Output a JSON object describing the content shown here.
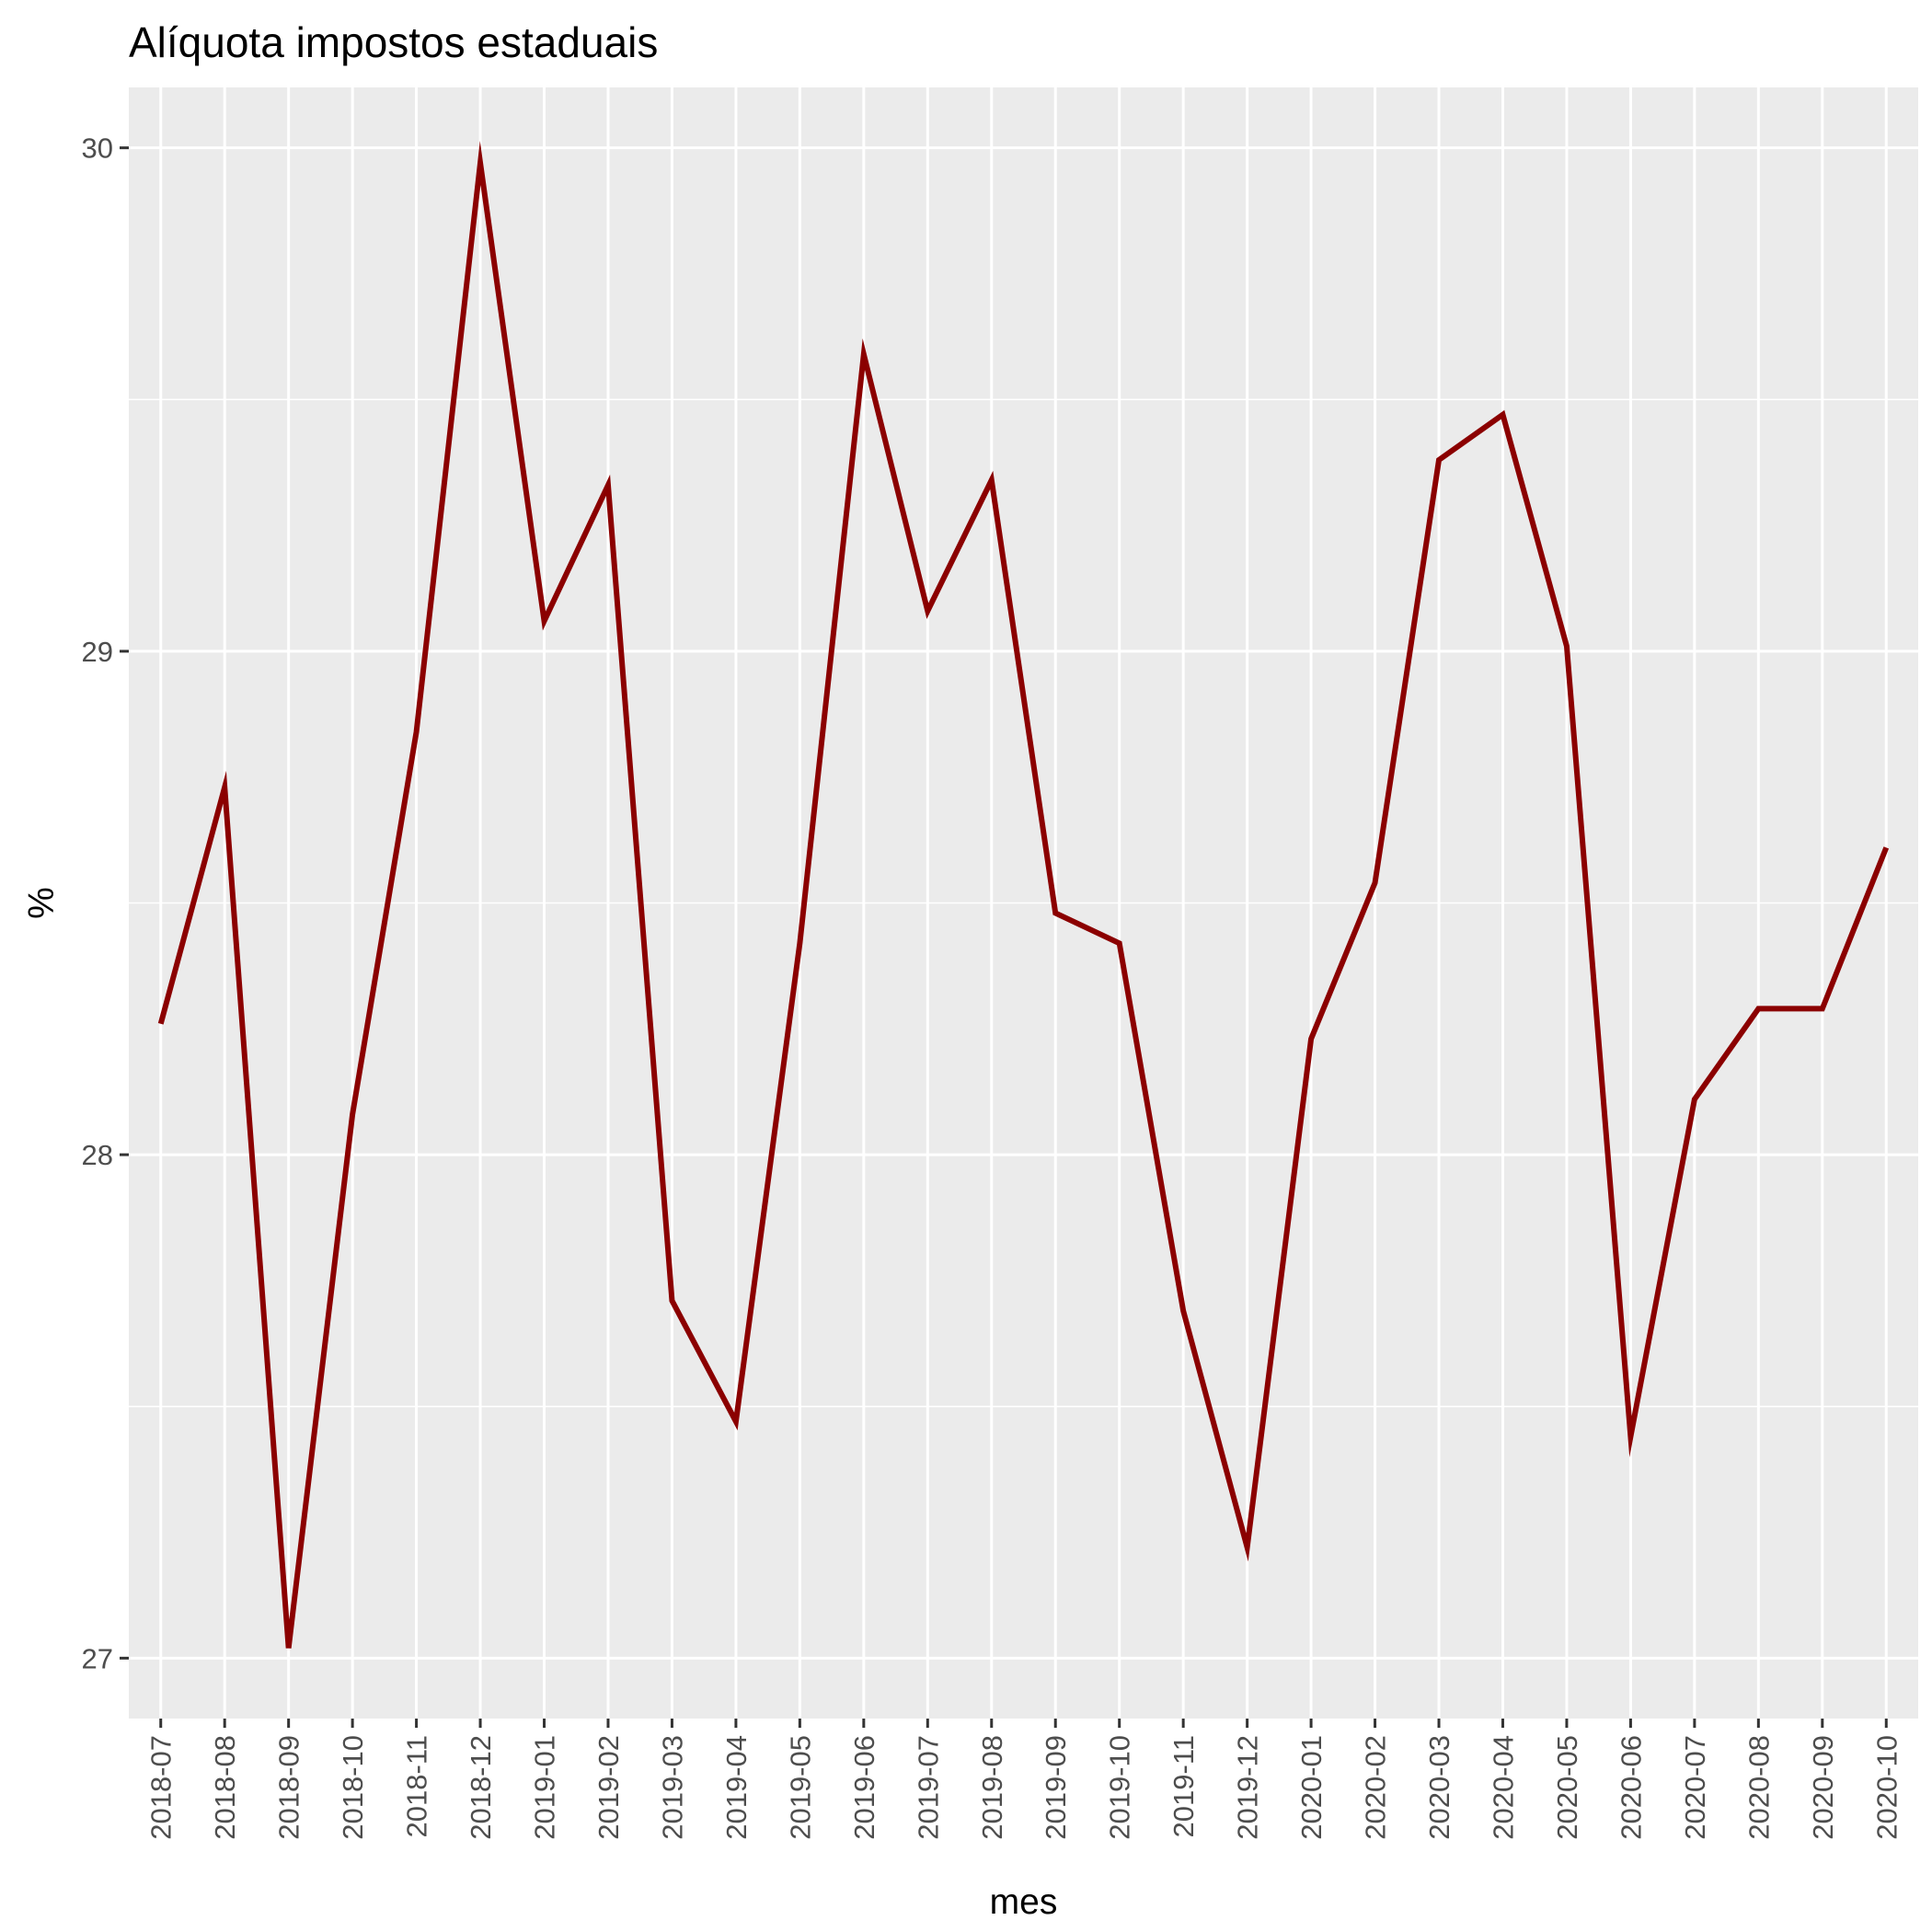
{
  "chart_data": {
    "type": "line",
    "title": "Alíquota impostos estaduais",
    "xlabel": "mes",
    "ylabel": "%",
    "categories": [
      "2018-07",
      "2018-08",
      "2018-09",
      "2018-10",
      "2018-11",
      "2018-12",
      "2019-01",
      "2019-02",
      "2019-03",
      "2019-04",
      "2019-05",
      "2019-06",
      "2019-07",
      "2019-08",
      "2019-09",
      "2019-10",
      "2019-11",
      "2019-12",
      "2020-01",
      "2020-02",
      "2020-03",
      "2020-04",
      "2020-05",
      "2020-06",
      "2020-07",
      "2020-08",
      "2020-09",
      "2020-10"
    ],
    "values": [
      28.26,
      28.73,
      27.02,
      28.08,
      28.84,
      29.97,
      29.06,
      29.33,
      27.71,
      27.47,
      28.42,
      29.59,
      29.08,
      29.34,
      28.48,
      28.42,
      27.69,
      27.22,
      28.23,
      28.54,
      29.38,
      29.47,
      29.01,
      27.44,
      28.11,
      28.29,
      28.29,
      28.61
    ],
    "yticks": [
      27,
      28,
      29,
      30
    ],
    "ylim": [
      26.88,
      30.12
    ],
    "grid": true,
    "line_color": "#8b0000",
    "panel_background": "#ebebeb",
    "grid_color": "#ffffff"
  }
}
